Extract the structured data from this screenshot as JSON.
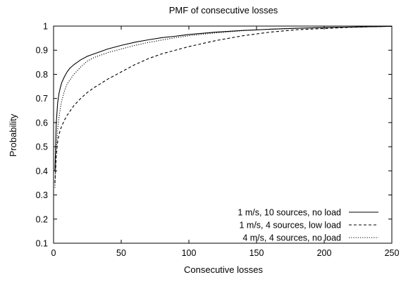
{
  "chart_data": {
    "type": "line",
    "title": "PMF of consecutive losses",
    "xlabel": "Consecutive losses",
    "ylabel": "Probability",
    "xlim": [
      0,
      250
    ],
    "ylim": [
      0.1,
      1
    ],
    "xticks": [
      "0",
      "50",
      "100",
      "150",
      "200",
      "250"
    ],
    "yticks": [
      "0.1",
      "0.2",
      "0.3",
      "0.4",
      "0.5",
      "0.6",
      "0.7",
      "0.8",
      "0.9",
      "1"
    ],
    "grid": false,
    "legend_position": "bottom-right",
    "series": [
      {
        "name": "1 m/s, 10 sources, no load",
        "style": "solid",
        "x": [
          1,
          2,
          3,
          4,
          5,
          6,
          8,
          10,
          12,
          15,
          20,
          25,
          30,
          40,
          50,
          60,
          70,
          80,
          90,
          100,
          120,
          140,
          160,
          180,
          200,
          220,
          240,
          250
        ],
        "y": [
          0.4,
          0.6,
          0.68,
          0.72,
          0.745,
          0.765,
          0.79,
          0.81,
          0.825,
          0.84,
          0.86,
          0.875,
          0.885,
          0.905,
          0.92,
          0.933,
          0.943,
          0.952,
          0.958,
          0.965,
          0.975,
          0.982,
          0.987,
          0.991,
          0.994,
          0.996,
          0.998,
          0.999
        ]
      },
      {
        "name": "1 m/s, 4 sources, low load",
        "style": "dashed",
        "x": [
          1,
          2,
          3,
          4,
          5,
          6,
          8,
          10,
          15,
          20,
          25,
          30,
          40,
          50,
          60,
          70,
          80,
          90,
          100,
          120,
          140,
          160,
          180,
          200,
          220,
          240,
          250
        ],
        "y": [
          0.35,
          0.46,
          0.52,
          0.55,
          0.57,
          0.585,
          0.61,
          0.63,
          0.67,
          0.7,
          0.725,
          0.745,
          0.78,
          0.81,
          0.84,
          0.865,
          0.885,
          0.9,
          0.915,
          0.94,
          0.96,
          0.975,
          0.985,
          0.99,
          0.995,
          0.998,
          0.999
        ]
      },
      {
        "name": "4 m/s, 4 sources, no load",
        "style": "dotted",
        "x": [
          1,
          2,
          3,
          4,
          5,
          6,
          8,
          10,
          15,
          20,
          25,
          30,
          40,
          50,
          60,
          70,
          80,
          90,
          100,
          120,
          140,
          160,
          180,
          200,
          220,
          240,
          250
        ],
        "y": [
          0.33,
          0.48,
          0.57,
          0.62,
          0.66,
          0.69,
          0.73,
          0.76,
          0.8,
          0.83,
          0.855,
          0.87,
          0.89,
          0.905,
          0.92,
          0.932,
          0.942,
          0.952,
          0.96,
          0.972,
          0.981,
          0.987,
          0.991,
          0.994,
          0.996,
          0.998,
          0.999
        ]
      }
    ]
  }
}
